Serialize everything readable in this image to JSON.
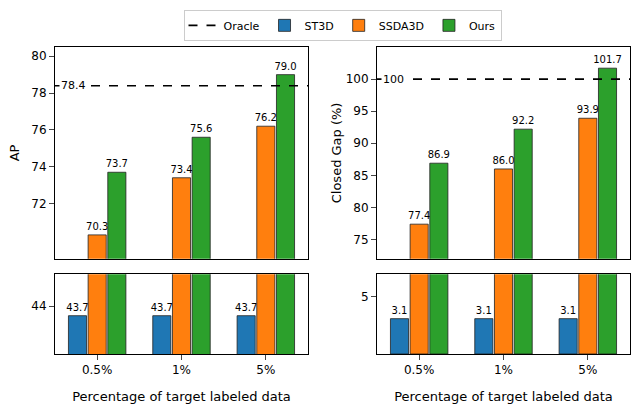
{
  "chart_data": [
    {
      "type": "bar",
      "categories": [
        "0.5%",
        "1%",
        "5%"
      ],
      "xlabel": "Percentage of target labeled data",
      "ylabel": "AP",
      "ylim": [
        [
          42.5,
          45
        ],
        [
          69,
          80.5
        ]
      ],
      "yticks": [
        44,
        72,
        74,
        76,
        78,
        80
      ],
      "grid": false,
      "legend": "top",
      "data_labels": true,
      "series": [
        {
          "name": "Oracle",
          "type": "line",
          "line_style": "dashed",
          "color": "#000000",
          "values": [
            78.4,
            78.4,
            78.4
          ]
        },
        {
          "name": "ST3D",
          "color": "#1f77b4",
          "values": [
            43.7,
            43.7,
            43.7
          ]
        },
        {
          "name": "SSDA3D",
          "color": "#ff7f0e",
          "values": [
            70.3,
            73.4,
            76.2
          ]
        },
        {
          "name": "Ours",
          "color": "#2ca02c",
          "values": [
            73.7,
            75.6,
            79.0
          ],
          "value_labels": [
            "73.7",
            "75.6",
            "79.0"
          ]
        }
      ],
      "annotations": [
        {
          "text": "78.4",
          "y": 78.4
        }
      ]
    },
    {
      "type": "bar",
      "categories": [
        "0.5%",
        "1%",
        "5%"
      ],
      "xlabel": "Percentage of target labeled data",
      "ylabel": "Closed Gap (%)",
      "ylim": [
        [
          0,
          7
        ],
        [
          72,
          105
        ]
      ],
      "yticks": [
        5,
        75,
        80,
        85,
        90,
        95,
        100
      ],
      "grid": false,
      "data_labels": true,
      "series": [
        {
          "name": "Oracle",
          "type": "line",
          "line_style": "dashed",
          "color": "#000000",
          "values": [
            100,
            100,
            100
          ]
        },
        {
          "name": "ST3D",
          "color": "#1f77b4",
          "values": [
            3.1,
            3.1,
            3.1
          ]
        },
        {
          "name": "SSDA3D",
          "color": "#ff7f0e",
          "values": [
            77.4,
            86.0,
            93.9
          ],
          "value_labels": [
            "77.4",
            "86.0",
            "93.9"
          ]
        },
        {
          "name": "Ours",
          "color": "#2ca02c",
          "values": [
            86.9,
            92.2,
            101.7
          ]
        }
      ],
      "annotations": [
        {
          "text": "100",
          "y": 100
        }
      ]
    }
  ]
}
